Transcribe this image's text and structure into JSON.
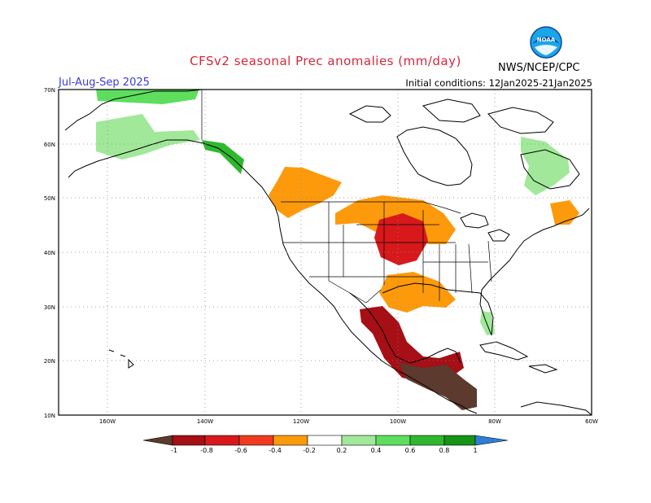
{
  "header": {
    "title": "CFSv2 seasonal Prec anomalies (mm/day)",
    "season": "Jul-Aug-Sep 2025",
    "initial_conditions": "Initial conditions: 12Jan2025-21Jan2025",
    "agency": "NWS/NCEP/CPC",
    "logo_text": "NOAA"
  },
  "axes": {
    "lat_labels": [
      "70N",
      "60N",
      "50N",
      "40N",
      "30N",
      "20N",
      "10N"
    ],
    "lon_labels": [
      "160W",
      "140W",
      "120W",
      "100W",
      "80W",
      "60W"
    ]
  },
  "colorbar": {
    "tick_labels": [
      "-1",
      "-0.8",
      "-0.6",
      "-0.4",
      "-0.2",
      "0.2",
      "0.4",
      "0.6",
      "0.8",
      "1"
    ],
    "colors": {
      "lt_neg1": "#5c3a2e",
      "neg1_neg08": "#a50f15",
      "neg08_neg06": "#d7191c",
      "neg06_neg04": "#f03b20",
      "neg04_neg02": "#fd9a0c",
      "pos02_04": "#a1e89a",
      "pos04_06": "#5ede5e",
      "pos06_08": "#2eb82e",
      "pos08_1": "#159415",
      "gt1": "#2c7fd6"
    }
  },
  "anomaly_regions": [
    {
      "name": "alaska-north",
      "color": "#5ede5e"
    },
    {
      "name": "alaska-south",
      "color": "#a1e89a"
    },
    {
      "name": "alaska-panhandle",
      "color": "#2eb82e"
    },
    {
      "name": "pacific-northwest",
      "color": "#fd9a0c"
    },
    {
      "name": "northern-plains",
      "color": "#fd9a0c"
    },
    {
      "name": "central-plains",
      "color": "#d7191c"
    },
    {
      "name": "southern-plains",
      "color": "#fd9a0c"
    },
    {
      "name": "mexico",
      "color": "#a50f15"
    },
    {
      "name": "central-america",
      "color": "#5c3a2e"
    },
    {
      "name": "eastern-canada",
      "color": "#a1e89a"
    },
    {
      "name": "new-england",
      "color": "#fd9a0c"
    },
    {
      "name": "florida",
      "color": "#a1e89a"
    }
  ]
}
